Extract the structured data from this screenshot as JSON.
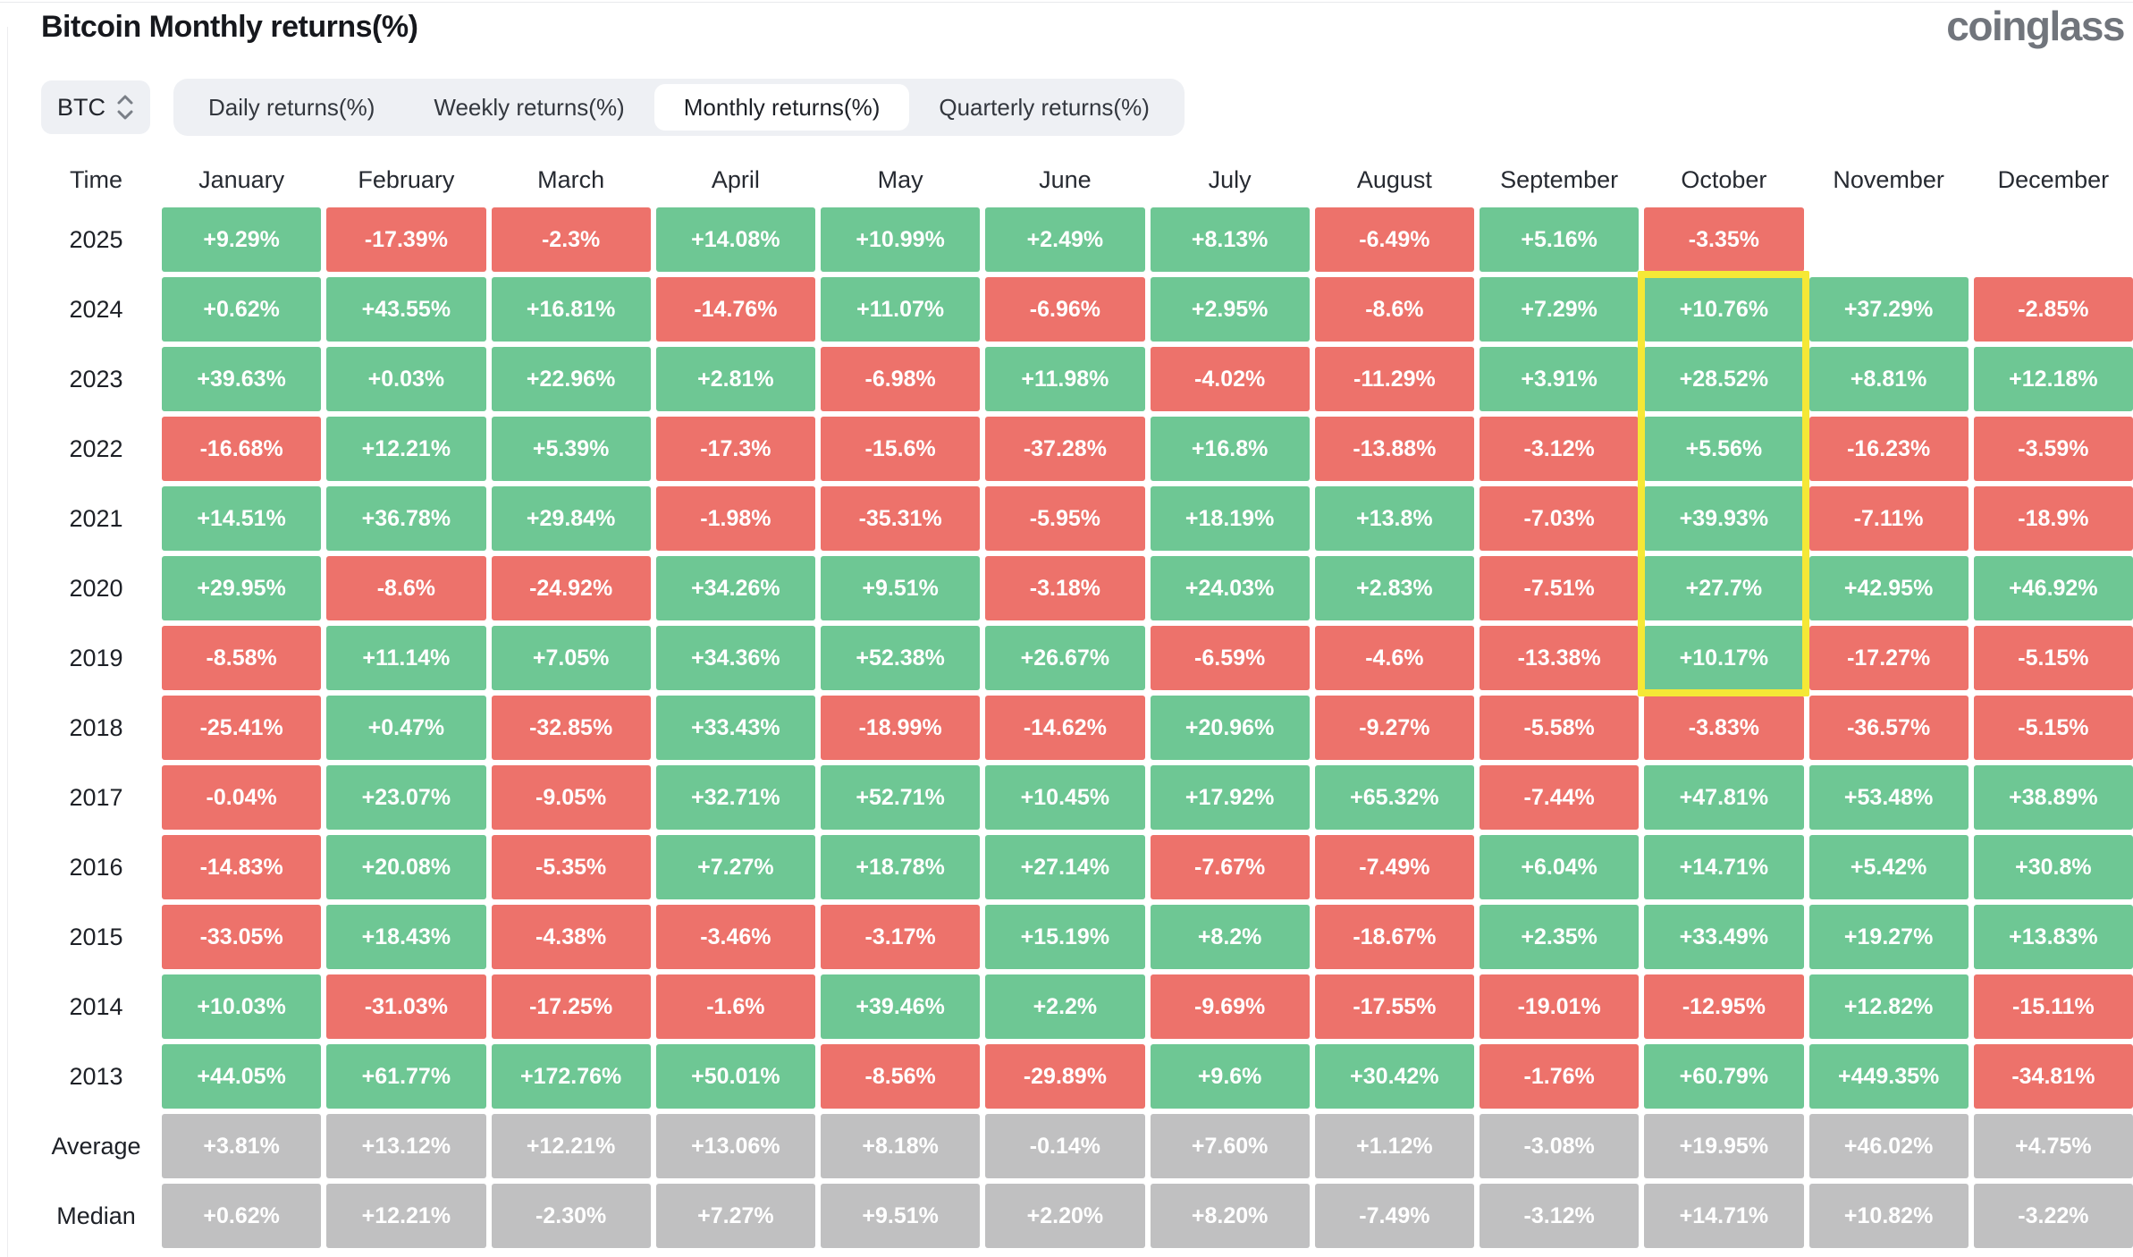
{
  "header": {
    "title": "Bitcoin Monthly returns(%)",
    "logo": "coinglass"
  },
  "controls": {
    "symbol": {
      "value": "BTC"
    },
    "tabs": [
      {
        "label": "Daily returns(%)",
        "active": false
      },
      {
        "label": "Weekly returns(%)",
        "active": false
      },
      {
        "label": "Monthly returns(%)",
        "active": true
      },
      {
        "label": "Quarterly returns(%)",
        "active": false
      }
    ]
  },
  "chart_data": {
    "type": "heatmap",
    "title": "Bitcoin Monthly returns(%)",
    "legend_position": "none",
    "grid": "off",
    "columns": [
      "Time",
      "January",
      "February",
      "March",
      "April",
      "May",
      "June",
      "July",
      "August",
      "September",
      "October",
      "November",
      "December"
    ],
    "rows": [
      {
        "label": "2025",
        "type": "year",
        "values": [
          "+9.29%",
          "-17.39%",
          "-2.3%",
          "+14.08%",
          "+10.99%",
          "+2.49%",
          "+8.13%",
          "-6.49%",
          "+5.16%",
          "-3.35%",
          "",
          ""
        ]
      },
      {
        "label": "2024",
        "type": "year",
        "values": [
          "+0.62%",
          "+43.55%",
          "+16.81%",
          "-14.76%",
          "+11.07%",
          "-6.96%",
          "+2.95%",
          "-8.6%",
          "+7.29%",
          "+10.76%",
          "+37.29%",
          "-2.85%"
        ]
      },
      {
        "label": "2023",
        "type": "year",
        "values": [
          "+39.63%",
          "+0.03%",
          "+22.96%",
          "+2.81%",
          "-6.98%",
          "+11.98%",
          "-4.02%",
          "-11.29%",
          "+3.91%",
          "+28.52%",
          "+8.81%",
          "+12.18%"
        ]
      },
      {
        "label": "2022",
        "type": "year",
        "values": [
          "-16.68%",
          "+12.21%",
          "+5.39%",
          "-17.3%",
          "-15.6%",
          "-37.28%",
          "+16.8%",
          "-13.88%",
          "-3.12%",
          "+5.56%",
          "-16.23%",
          "-3.59%"
        ]
      },
      {
        "label": "2021",
        "type": "year",
        "values": [
          "+14.51%",
          "+36.78%",
          "+29.84%",
          "-1.98%",
          "-35.31%",
          "-5.95%",
          "+18.19%",
          "+13.8%",
          "-7.03%",
          "+39.93%",
          "-7.11%",
          "-18.9%"
        ]
      },
      {
        "label": "2020",
        "type": "year",
        "values": [
          "+29.95%",
          "-8.6%",
          "-24.92%",
          "+34.26%",
          "+9.51%",
          "-3.18%",
          "+24.03%",
          "+2.83%",
          "-7.51%",
          "+27.7%",
          "+42.95%",
          "+46.92%"
        ]
      },
      {
        "label": "2019",
        "type": "year",
        "values": [
          "-8.58%",
          "+11.14%",
          "+7.05%",
          "+34.36%",
          "+52.38%",
          "+26.67%",
          "-6.59%",
          "-4.6%",
          "-13.38%",
          "+10.17%",
          "-17.27%",
          "-5.15%"
        ]
      },
      {
        "label": "2018",
        "type": "year",
        "values": [
          "-25.41%",
          "+0.47%",
          "-32.85%",
          "+33.43%",
          "-18.99%",
          "-14.62%",
          "+20.96%",
          "-9.27%",
          "-5.58%",
          "-3.83%",
          "-36.57%",
          "-5.15%"
        ]
      },
      {
        "label": "2017",
        "type": "year",
        "values": [
          "-0.04%",
          "+23.07%",
          "-9.05%",
          "+32.71%",
          "+52.71%",
          "+10.45%",
          "+17.92%",
          "+65.32%",
          "-7.44%",
          "+47.81%",
          "+53.48%",
          "+38.89%"
        ]
      },
      {
        "label": "2016",
        "type": "year",
        "values": [
          "-14.83%",
          "+20.08%",
          "-5.35%",
          "+7.27%",
          "+18.78%",
          "+27.14%",
          "-7.67%",
          "-7.49%",
          "+6.04%",
          "+14.71%",
          "+5.42%",
          "+30.8%"
        ]
      },
      {
        "label": "2015",
        "type": "year",
        "values": [
          "-33.05%",
          "+18.43%",
          "-4.38%",
          "-3.46%",
          "-3.17%",
          "+15.19%",
          "+8.2%",
          "-18.67%",
          "+2.35%",
          "+33.49%",
          "+19.27%",
          "+13.83%"
        ]
      },
      {
        "label": "2014",
        "type": "year",
        "values": [
          "+10.03%",
          "-31.03%",
          "-17.25%",
          "-1.6%",
          "+39.46%",
          "+2.2%",
          "-9.69%",
          "-17.55%",
          "-19.01%",
          "-12.95%",
          "+12.82%",
          "-15.11%"
        ]
      },
      {
        "label": "2013",
        "type": "year",
        "values": [
          "+44.05%",
          "+61.77%",
          "+172.76%",
          "+50.01%",
          "-8.56%",
          "-29.89%",
          "+9.6%",
          "+30.42%",
          "-1.76%",
          "+60.79%",
          "+449.35%",
          "-34.81%"
        ]
      },
      {
        "label": "Average",
        "type": "summary",
        "values": [
          "+3.81%",
          "+13.12%",
          "+12.21%",
          "+13.06%",
          "+8.18%",
          "-0.14%",
          "+7.60%",
          "+1.12%",
          "-3.08%",
          "+19.95%",
          "+46.02%",
          "+4.75%"
        ]
      },
      {
        "label": "Median",
        "type": "summary",
        "values": [
          "+0.62%",
          "+12.21%",
          "-2.30%",
          "+7.27%",
          "+9.51%",
          "+2.20%",
          "+8.20%",
          "-7.49%",
          "-3.12%",
          "+14.71%",
          "+10.82%",
          "-3.22%"
        ]
      }
    ],
    "highlight": {
      "column": "October",
      "from_row": "2024",
      "to_row": "2019"
    }
  },
  "colors": {
    "positive": "#6ec794",
    "negative": "#ed726b",
    "neutral": "#c0c0c1",
    "highlight": "#f5e836",
    "tab_bg": "#eef0f4"
  }
}
